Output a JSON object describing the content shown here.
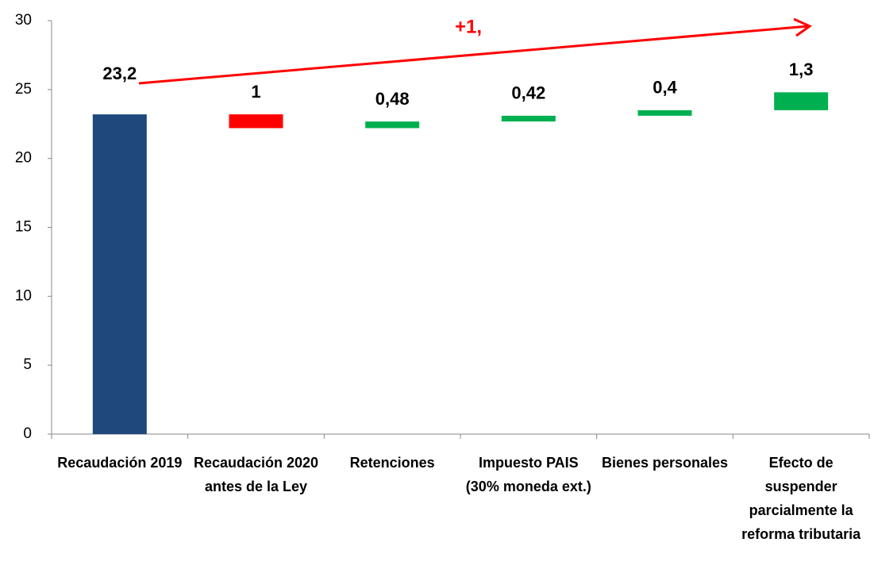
{
  "chart_data": {
    "type": "waterfall",
    "categories": [
      "Recaudación 2019",
      "Recaudación 2020 antes de la Ley",
      "Retenciones",
      "Impuesto PAIS (30% moneda ext.)",
      "Bienes personales",
      "Efecto de suspender parcialmente la reforma tributaria"
    ],
    "values": [
      23.2,
      -1,
      0.48,
      0.42,
      0.4,
      1.3
    ],
    "value_labels": [
      "23,2",
      "1",
      "0,48",
      "0,42",
      "0,4",
      "1,3"
    ],
    "colors": [
      "#1f497d",
      "#ff0000",
      "#00b050",
      "#00b050",
      "#00b050",
      "#00b050"
    ],
    "ylim": [
      0,
      30
    ],
    "yticks": [
      0,
      5,
      10,
      15,
      20,
      25,
      30
    ],
    "grid": false,
    "annotation": "+1,",
    "annotation_color": "#ff0000"
  }
}
